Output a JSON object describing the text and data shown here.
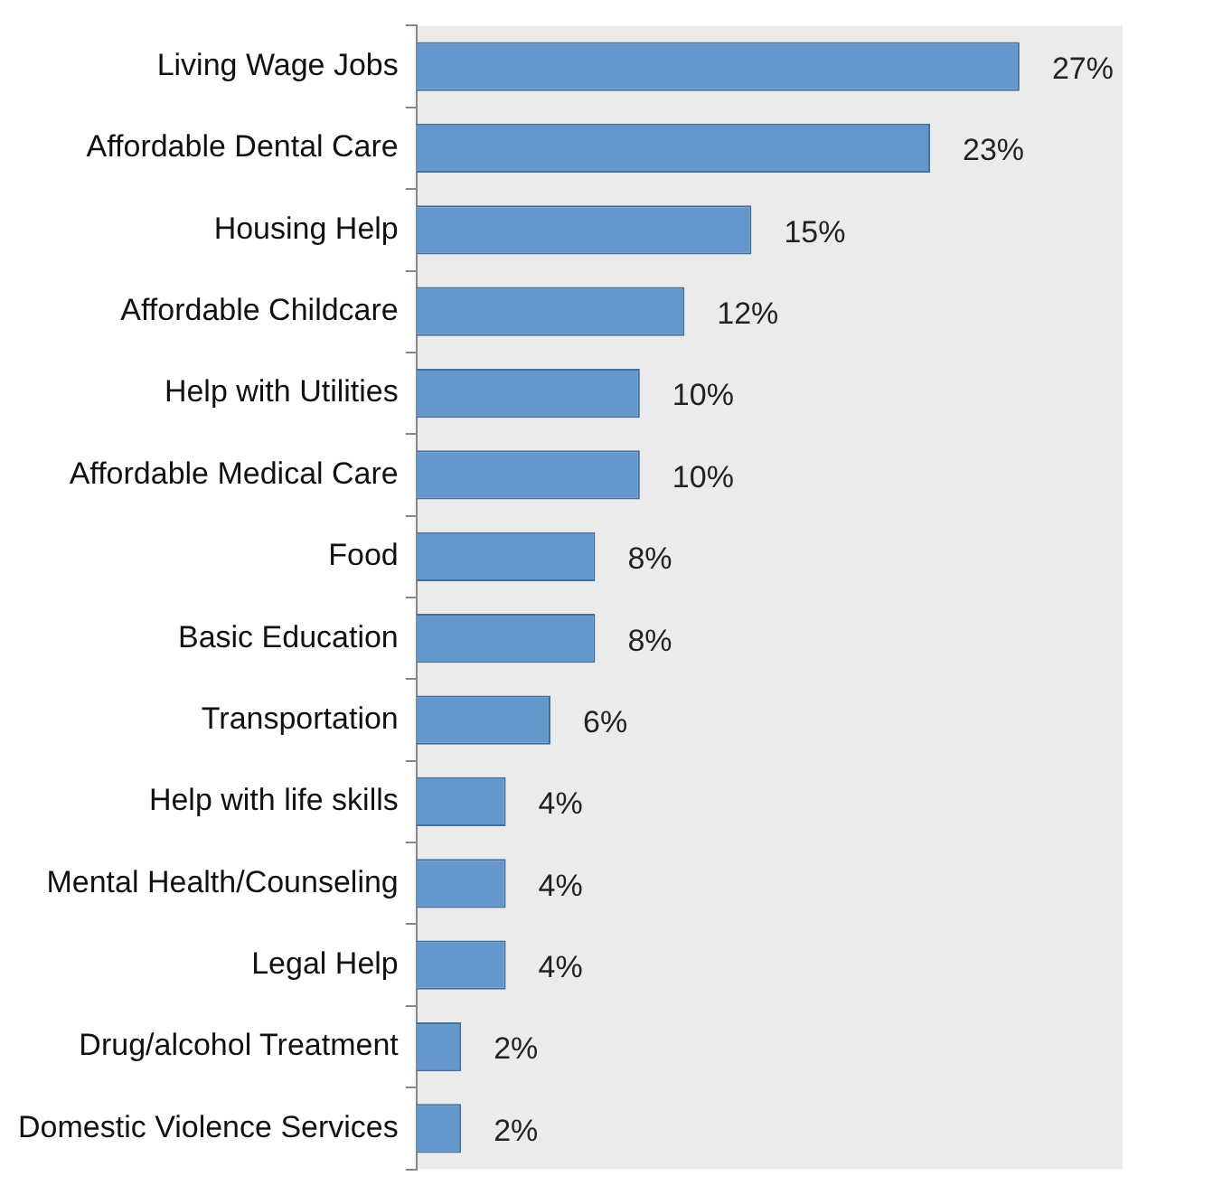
{
  "chart_data": {
    "type": "bar",
    "orientation": "horizontal",
    "data_labels": true,
    "legend": false,
    "categories": [
      "Living Wage Jobs",
      "Affordable Dental Care",
      "Housing Help",
      "Affordable Childcare",
      "Help with Utilities",
      "Affordable Medical Care",
      "Food",
      "Basic Education",
      "Transportation",
      "Help with life skills",
      "Mental Health/Counseling",
      "Legal Help",
      "Drug/alcohol Treatment",
      "Domestic Violence Services"
    ],
    "series": [
      {
        "color": "#6597cc",
        "values": [
          27,
          23,
          15,
          12,
          10,
          10,
          8,
          8,
          6,
          4,
          4,
          4,
          2,
          2
        ],
        "value_labels": [
          "27%",
          "23%",
          "15%",
          "12%",
          "10%",
          "10%",
          "8%",
          "8%",
          "6%",
          "4%",
          "4%",
          "4%",
          "2%",
          "2%"
        ]
      }
    ]
  }
}
